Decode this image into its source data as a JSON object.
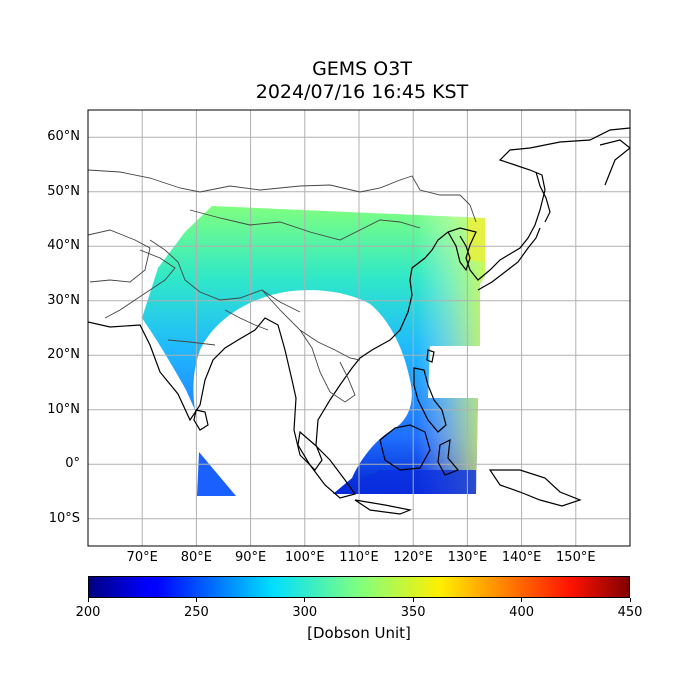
{
  "title_line1": "GEMS O3T",
  "title_line2": "2024/07/16 16:45 KST",
  "map": {
    "projection": "PlateCarree",
    "lon_range": [
      60,
      160
    ],
    "lat_range": [
      -15,
      65
    ],
    "gridlines": true,
    "lat_ticks": [
      {
        "value": 60,
        "label": "60°N"
      },
      {
        "value": 50,
        "label": "50°N"
      },
      {
        "value": 40,
        "label": "40°N"
      },
      {
        "value": 30,
        "label": "30°N"
      },
      {
        "value": 20,
        "label": "20°N"
      },
      {
        "value": 10,
        "label": "10°N"
      },
      {
        "value": 0,
        "label": "0°"
      },
      {
        "value": -10,
        "label": "10°S"
      }
    ],
    "lon_ticks": [
      {
        "value": 70,
        "label": "70°E"
      },
      {
        "value": 80,
        "label": "80°E"
      },
      {
        "value": 90,
        "label": "90°E"
      },
      {
        "value": 100,
        "label": "100°E"
      },
      {
        "value": 110,
        "label": "110°E"
      },
      {
        "value": 120,
        "label": "120°E"
      },
      {
        "value": 130,
        "label": "130°E"
      },
      {
        "value": 140,
        "label": "140°E"
      },
      {
        "value": 150,
        "label": "150°E"
      }
    ],
    "gridline_color": "#b0b0b0",
    "coastline_color": "#000000",
    "border_color": "#333333"
  },
  "colorbar": {
    "colormap": "jet",
    "min": 200,
    "max": 450,
    "ticks": [
      "200",
      "250",
      "300",
      "350",
      "400",
      "450"
    ],
    "label": "[Dobson Unit]"
  }
}
